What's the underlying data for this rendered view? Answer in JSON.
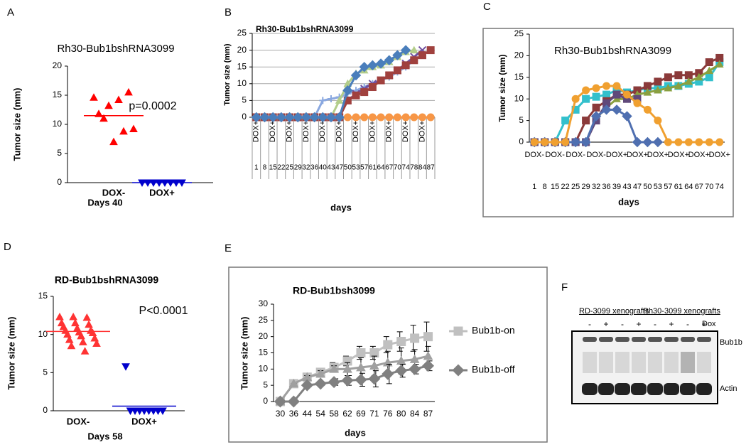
{
  "chart_data": [
    {
      "type": "dotplot",
      "panel": "A",
      "title": "Rh30-Bub1bshRNA3099",
      "y_label": "Tumor size (mm)",
      "x_label": "Days 40",
      "annotation": "p=0.0002",
      "categories": [
        "DOX-",
        "DOX+"
      ],
      "groups": [
        {
          "color": "#ff0000",
          "marker": "triangle",
          "values": [
            14.6,
            15.5,
            14.2,
            13.2,
            11.8,
            9.2,
            8.8,
            7,
            11
          ],
          "mean": 11.5
        },
        {
          "color": "#0000cc",
          "marker": "triangle-down",
          "values": [
            0,
            0,
            0,
            0,
            0,
            0,
            0,
            0
          ],
          "mean": 0
        }
      ],
      "ylim": [
        0,
        20
      ],
      "yticks": [
        0,
        5,
        10,
        15,
        20
      ]
    },
    {
      "type": "line",
      "panel": "B",
      "title": "Rh30-Bub1bshRNA3099",
      "y_label": "Tumor size (mm)",
      "x_label": "days",
      "categories": [
        "1",
        "8",
        "15",
        "22",
        "25",
        "29",
        "32",
        "36",
        "40",
        "43",
        "47",
        "50",
        "53",
        "57",
        "61",
        "64",
        "67",
        "70",
        "74",
        "78",
        "84",
        "87"
      ],
      "category_groups": [
        "DOX+",
        null,
        "DOX+",
        null,
        "DOX+",
        null,
        "DOX+",
        null,
        "DOX+",
        null,
        "DOX+",
        null,
        "DOX+",
        null,
        "DOX+",
        null,
        "DOX+",
        null,
        "DOX+",
        null,
        "DOX+",
        null
      ],
      "series": [
        {
          "color": "#f79646",
          "marker": "circle",
          "values": [
            0,
            0,
            0,
            0,
            0,
            0,
            0,
            0,
            0,
            0,
            0,
            0,
            0,
            0,
            0,
            0,
            0,
            0,
            0,
            0,
            0,
            0
          ]
        },
        {
          "color": "#8aa8e0",
          "marker": "plus",
          "values": [
            0,
            0,
            0,
            0,
            0,
            0,
            0,
            0,
            5,
            5.5,
            6,
            7,
            8,
            9,
            10,
            11,
            12,
            13.5,
            15,
            17,
            18.5,
            20
          ]
        },
        {
          "color": "#b3cd8a",
          "marker": "triangle",
          "values": [
            0,
            0,
            0,
            0,
            0,
            0,
            0,
            0,
            0,
            0,
            5,
            10,
            13,
            14,
            15,
            15.5,
            16.5,
            18,
            19.5,
            20,
            null,
            null
          ]
        },
        {
          "color": "#7050a0",
          "marker": "x",
          "values": [
            0,
            0,
            0,
            0,
            0,
            0,
            0,
            0,
            0,
            0,
            0,
            5,
            7,
            8.5,
            10,
            11,
            12.5,
            14,
            16,
            18,
            20,
            null
          ]
        },
        {
          "color": "#a0413e",
          "marker": "square",
          "values": [
            0,
            0,
            0,
            0,
            0,
            0,
            0,
            0,
            0,
            0,
            0,
            5,
            6.5,
            7.5,
            9,
            11,
            12.5,
            14,
            15.5,
            17,
            18.5,
            20
          ]
        },
        {
          "color": "#4a7ebb",
          "marker": "diamond",
          "values": [
            0,
            0,
            0,
            0,
            0,
            0,
            0,
            0,
            0,
            0,
            0,
            8,
            12.5,
            15,
            15.5,
            16,
            17,
            18.5,
            20,
            null,
            null,
            null
          ]
        }
      ],
      "ylim": [
        0,
        25
      ],
      "yticks": [
        0,
        5,
        10,
        15,
        20,
        25
      ],
      "grid": true
    },
    {
      "type": "line",
      "panel": "C",
      "title": "Rh30-Bub1bshRNA3099",
      "y_label": "Tumor size (mm)",
      "x_label": "days",
      "categories": [
        "1",
        "8",
        "15",
        "22",
        "25",
        "29",
        "32",
        "36",
        "39",
        "43",
        "47",
        "50",
        "53",
        "57",
        "61",
        "64",
        "67",
        "70",
        "74"
      ],
      "category_groups": [
        "DOX-",
        null,
        "DOX-",
        null,
        "DOX-",
        null,
        "DOX-",
        null,
        "DOX+",
        null,
        "DOX+",
        null,
        "DOX+",
        null,
        "DOX+",
        null,
        "DOX+",
        null,
        "DOX+"
      ],
      "series": [
        {
          "color": "#33c0cc",
          "marker": "square",
          "values": [
            0,
            0,
            0,
            5,
            7.5,
            10,
            10.5,
            11,
            12,
            11.5,
            12,
            12.5,
            12.5,
            13,
            13,
            13.5,
            14,
            15,
            18.5
          ]
        },
        {
          "color": "#8b3a3a",
          "marker": "square",
          "values": [
            0,
            0,
            0,
            0,
            0,
            5,
            8,
            9.5,
            11,
            11,
            12,
            13,
            14,
            15,
            15.5,
            15.5,
            16,
            18.5,
            19.5
          ]
        },
        {
          "color": "#8aa040",
          "marker": "triangle",
          "values": [
            0,
            0,
            0,
            0,
            0,
            0,
            5.5,
            8,
            10,
            10,
            11,
            11.5,
            12,
            12.5,
            13,
            14,
            15,
            16.5,
            18
          ]
        },
        {
          "color": "#60497a",
          "marker": "square",
          "values": [
            0,
            0,
            0,
            0,
            0,
            0,
            5,
            9,
            11,
            10,
            10,
            null,
            null,
            null,
            null,
            null,
            null,
            null,
            null
          ]
        },
        {
          "color": "#4f6fb0",
          "marker": "diamond",
          "values": [
            0,
            0,
            0,
            0,
            0,
            0,
            6,
            7.5,
            7.5,
            6,
            0,
            0,
            0,
            null,
            null,
            null,
            null,
            null,
            null
          ]
        },
        {
          "color": "#f0a030",
          "marker": "circle",
          "values": [
            0,
            0,
            0,
            0,
            10,
            12,
            12.5,
            13,
            13,
            11,
            9,
            7.5,
            5,
            0,
            0,
            0,
            0,
            0,
            0
          ]
        }
      ],
      "ylim": [
        0,
        25
      ],
      "yticks": [
        0,
        5,
        10,
        15,
        20,
        25
      ],
      "grid": false
    },
    {
      "type": "dotplot",
      "panel": "D",
      "title": "RD-Bub1bshRNA3099",
      "y_label": "Tumor size (mm)",
      "x_label": "Days 58",
      "annotation": "P<0.0001",
      "categories": [
        "DOX-",
        "DOX+"
      ],
      "groups": [
        {
          "color": "#ff3333",
          "marker": "triangle",
          "values": [
            12.3,
            12.3,
            12.2,
            11.5,
            11.5,
            11.3,
            11,
            10.8,
            10.5,
            10.5,
            10.3,
            10.2,
            10,
            9.8,
            9.5,
            9.3,
            9,
            8.8,
            8.5,
            7.8
          ],
          "mean": 10.4
        },
        {
          "color": "#0000cc",
          "marker": "triangle-down",
          "values": [
            5.8,
            0,
            0,
            0,
            0,
            0,
            0,
            0,
            0
          ],
          "mean": 0.6
        }
      ],
      "ylim": [
        0,
        15
      ],
      "yticks": [
        0,
        5,
        10,
        15
      ]
    },
    {
      "type": "line",
      "panel": "E",
      "title": "RD-Bub1bsh3099",
      "y_label": "Tumor size (mm)",
      "x_label": "days",
      "categories": [
        "30",
        "36",
        "44",
        "54",
        "58",
        "62",
        "69",
        "71",
        "76",
        "80",
        "84",
        "87"
      ],
      "series": [
        {
          "color": "#c0c0c0",
          "marker": "square",
          "name": "Bub1b-on",
          "values": [
            0,
            5.5,
            7.5,
            9,
            10.5,
            12.5,
            15,
            15,
            17.5,
            18.5,
            19.5,
            20
          ],
          "errors": [
            0,
            0,
            1,
            1,
            1.5,
            1.5,
            2,
            2,
            2.5,
            3,
            4,
            4.5
          ]
        },
        {
          "color": "#a0a0a0",
          "marker": "triangle",
          "values": [
            0,
            5.5,
            7.5,
            8.5,
            10,
            10,
            10.5,
            11,
            12,
            12.5,
            13,
            14
          ],
          "errors": [
            0,
            0,
            0.5,
            1,
            1,
            2,
            3,
            3,
            3.5,
            4,
            3,
            3
          ]
        },
        {
          "color": "#808080",
          "marker": "diamond",
          "name": "Bub1b-off",
          "values": [
            0,
            0,
            5,
            5.5,
            6,
            6.5,
            6.7,
            7,
            8.5,
            9.5,
            10,
            11
          ],
          "errors": [
            0,
            0,
            0.5,
            0.5,
            1,
            1.5,
            2,
            2.5,
            3,
            2,
            1.5,
            1.5
          ]
        }
      ],
      "ylim": [
        0,
        30
      ],
      "yticks": [
        0,
        5,
        10,
        15,
        20,
        25,
        30
      ],
      "grid": false
    },
    {
      "type": "blot",
      "panel": "F",
      "group_labels": [
        "RD-3099 xenografts",
        "Rh30-3099 xenografts"
      ],
      "row_label": "Dox",
      "lane_labels": [
        "-",
        "+",
        "-",
        "+",
        "-",
        "+",
        "-",
        "+"
      ],
      "band_labels": [
        "Bub1b",
        "Actin"
      ]
    }
  ]
}
